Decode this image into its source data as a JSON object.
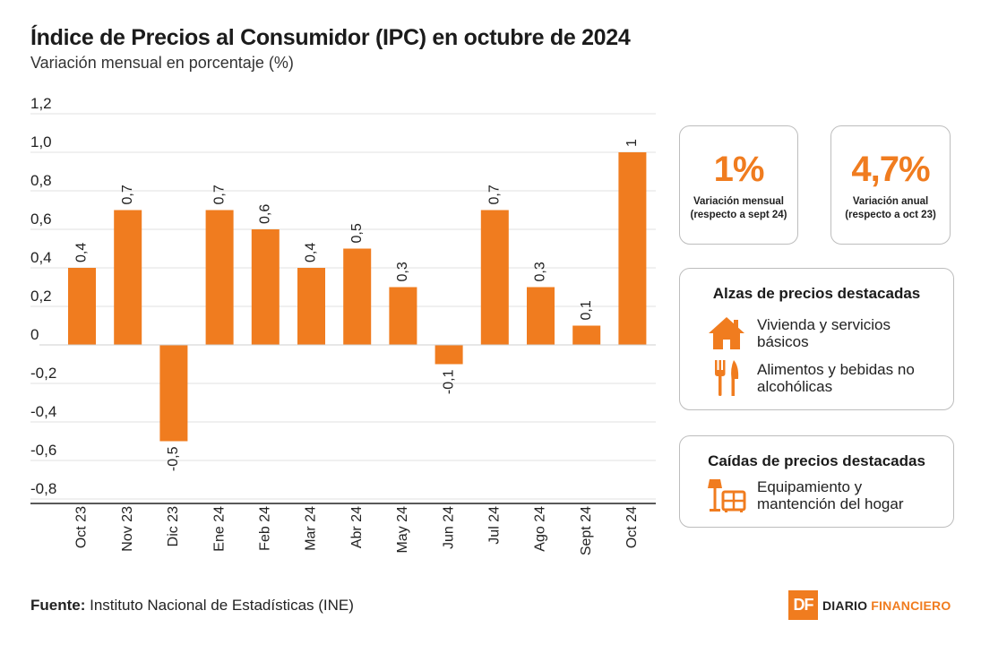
{
  "header": {
    "title": "Índice de Precios al Consumidor (IPC) en octubre de 2024",
    "subtitle": "Variación mensual en porcentaje (%)"
  },
  "colors": {
    "bar": "#f07c1f",
    "grid": "#e0e0e0",
    "axis": "#222222"
  },
  "chart_data": {
    "type": "bar",
    "title": "Índice de Precios al Consumidor (IPC) en octubre de 2024",
    "ylabel": "Variación mensual en porcentaje (%)",
    "xlabel": "",
    "categories": [
      "Oct 23",
      "Nov 23",
      "Dic 23",
      "Ene 24",
      "Feb 24",
      "Mar 24",
      "Abr 24",
      "May 24",
      "Jun 24",
      "Jul 24",
      "Ago 24",
      "Sept 24",
      "Oct 24"
    ],
    "values": [
      0.4,
      0.7,
      -0.5,
      0.7,
      0.6,
      0.4,
      0.5,
      0.3,
      -0.1,
      0.7,
      0.3,
      0.1,
      1.0
    ],
    "value_labels": [
      "0,4",
      "0,7",
      "-0,5",
      "0,7",
      "0,6",
      "0,4",
      "0,5",
      "0,3",
      "-0,1",
      "0,7",
      "0,3",
      "0,1",
      "1"
    ],
    "yticks": [
      1.2,
      1.0,
      0.8,
      0.6,
      0.4,
      0.2,
      0,
      -0.2,
      -0.4,
      -0.6,
      -0.8
    ],
    "ytick_labels": [
      "1,2",
      "1,0",
      "0,8",
      "0,6",
      "0,4",
      "0,2",
      "0",
      "-0,2",
      "-0,4",
      "-0,6",
      "-0,8"
    ],
    "ylim": [
      -0.8,
      1.2
    ],
    "grid": true
  },
  "kpis": [
    {
      "value": "1%",
      "label_line1": "Variación mensual",
      "label_line2": "(respecto a sept 24)"
    },
    {
      "value": "4,7%",
      "label_line1": "Variación anual",
      "label_line2": "(respecto a oct 23)"
    }
  ],
  "rises": {
    "title": "Alzas de precios destacadas",
    "items": [
      {
        "icon": "house-icon",
        "text": "Vivienda y servicios básicos"
      },
      {
        "icon": "fork-knife-icon",
        "text": "Alimentos y bebidas no alcohólicas"
      }
    ]
  },
  "falls": {
    "title": "Caídas de precios destacadas",
    "items": [
      {
        "icon": "furniture-icon",
        "text": "Equipamiento y mantención del hogar"
      }
    ]
  },
  "footer": {
    "source_label": "Fuente:",
    "source_text": "Instituto Nacional de Estadísticas (INE)",
    "logo_mark": "DF",
    "logo_word1": "DIARIO",
    "logo_word2": "FINANCIERO"
  }
}
